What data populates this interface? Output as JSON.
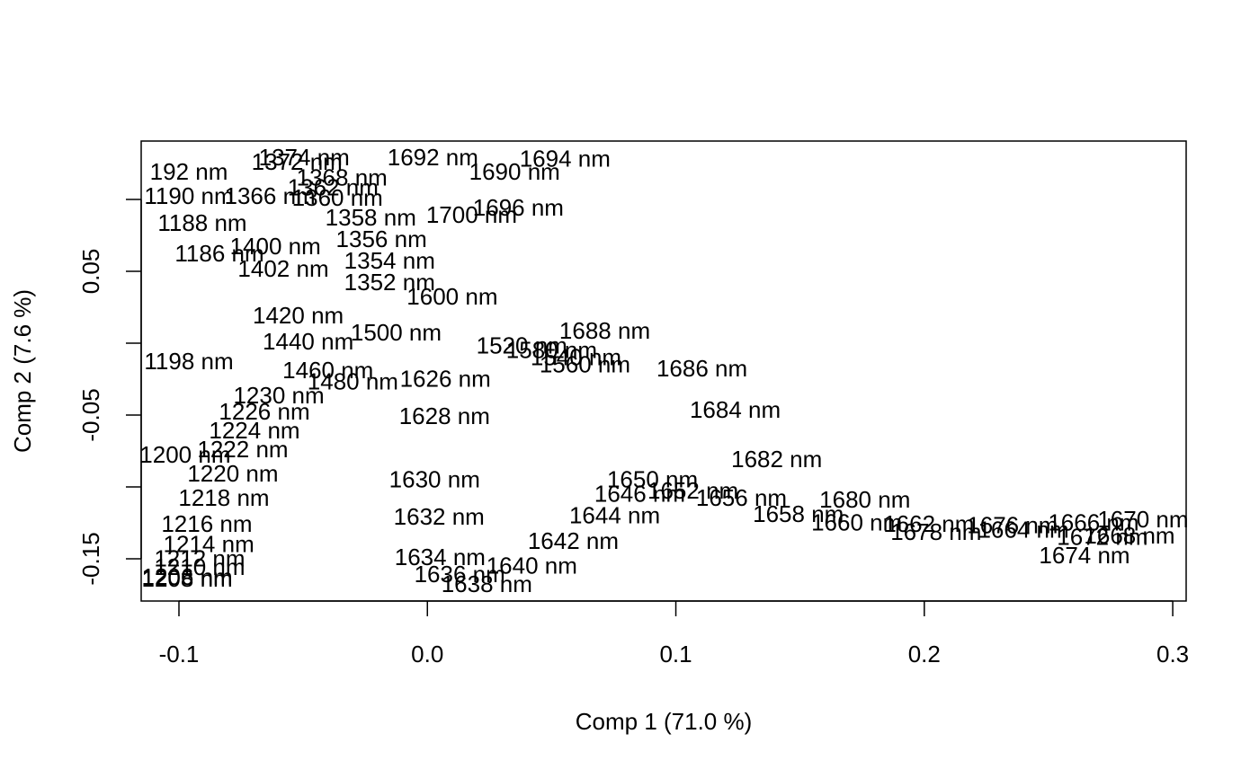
{
  "chart_data": {
    "type": "text-scatter",
    "xlabel": "Comp 1 (71.0 %)",
    "ylabel": "Comp 2 (7.6 %)",
    "xlim": [
      -0.1152,
      0.3054
    ],
    "ylim": [
      -0.1794,
      0.1406
    ],
    "xticks": [
      -0.1,
      {
        "value": 0,
        "label": "0.0"
      },
      0.1,
      0.2,
      0.3
    ],
    "yticks": [
      -0.15,
      {
        "value": -0.1,
        "label": null
      },
      -0.05,
      {
        "value": 0,
        "label": null
      },
      0.05,
      {
        "value": 0.1,
        "label": null
      }
    ],
    "color": "#000000",
    "labels": [
      "1692 nm",
      "1694 nm",
      "1690 nm",
      "1696 nm",
      "1700 nm",
      "1358 nm",
      "1356 nm",
      "1354 nm",
      "1352 nm",
      "1400 nm",
      "1374 nm",
      "1372 nm",
      "1368 nm",
      "1366 nm",
      "1362 nm",
      "1360 nm",
      "192 nm",
      "1190 nm",
      "1188 nm",
      "1186 nm",
      "1402 nm",
      "1198 nm",
      "1688 nm",
      "1686 nm",
      "1626 nm",
      "1628 nm",
      "1684 nm",
      "1682 nm",
      "1230 nm",
      "1226 nm",
      "1224 nm",
      "1222 nm",
      "1200 nm",
      "1220 nm",
      "1218 nm",
      "1216 nm",
      "1214 nm",
      "1212 nm",
      "1210 nm",
      "1208 nm",
      "1206 nm",
      "1630 nm",
      "1632 nm",
      "1634 nm",
      "1636 nm",
      "1638 nm",
      "1640 nm",
      "1642 nm",
      "1644 nm",
      "1646 nm",
      "1650 nm",
      "1652 nm",
      "1656 nm",
      "1658 nm",
      "1680 nm",
      "1660 nm",
      "1662 nm",
      "1678 nm",
      "1676 nm",
      "1664 nm",
      "1666 nm",
      "1670 nm",
      "1668 nm",
      "1672 nm",
      "1674 nm",
      "1600 nm",
      "1500 nm",
      "1520 nm",
      "1540 nm",
      "1560 nm",
      "1580 nm",
      "1420 nm",
      "1440 nm",
      "1460 nm",
      "1480 nm"
    ],
    "x": [
      0.0022,
      0.0554,
      0.0351,
      0.0366,
      0.0178,
      -0.0228,
      -0.0185,
      -0.0152,
      -0.0152,
      -0.0612,
      -0.0496,
      -0.0525,
      -0.0344,
      -0.0634,
      -0.038,
      -0.0362,
      -0.096,
      -0.096,
      -0.0906,
      -0.0837,
      -0.058,
      -0.096,
      0.0714,
      0.1105,
      0.0072,
      0.0069,
      0.1239,
      0.1406,
      -0.0598,
      -0.0656,
      -0.0696,
      -0.0743,
      -0.0975,
      -0.0783,
      -0.0819,
      -0.0888,
      -0.088,
      -0.0917,
      -0.0917,
      -0.0967,
      -0.0967,
      0.0029,
      0.0047,
      0.0051,
      0.013,
      0.0239,
      0.042,
      0.0587,
      0.0754,
      0.0855,
      0.0906,
      0.1069,
      0.1264,
      0.1493,
      0.1761,
      0.1728,
      0.2018,
      0.2047,
      0.2355,
      0.2399,
      0.2681,
      0.288,
      0.2826,
      0.2717,
      0.2645,
      0.01,
      -0.0126,
      0.038,
      0.0598,
      0.0634,
      0.05,
      -0.052,
      -0.048,
      -0.04,
      -0.03
    ],
    "values": [
      0.128,
      0.127,
      0.118,
      0.093,
      0.088,
      0.086,
      0.071,
      0.056,
      0.041,
      0.066,
      0.128,
      0.125,
      0.114,
      0.101,
      0.107,
      0.1,
      0.118,
      0.101,
      0.0825,
      0.061,
      0.0506,
      -0.014,
      0.0075,
      -0.019,
      -0.026,
      -0.052,
      -0.0475,
      -0.082,
      -0.0375,
      -0.049,
      -0.062,
      -0.075,
      -0.079,
      -0.092,
      -0.109,
      -0.127,
      -0.141,
      -0.151,
      -0.157,
      -0.165,
      -0.164,
      -0.096,
      -0.122,
      -0.15,
      -0.162,
      -0.169,
      -0.156,
      -0.139,
      -0.121,
      -0.106,
      -0.096,
      -0.104,
      -0.109,
      -0.12,
      -0.11,
      -0.126,
      -0.127,
      -0.1325,
      -0.128,
      -0.131,
      -0.126,
      -0.124,
      -0.135,
      -0.136,
      -0.149,
      0.031,
      0.006,
      -0.003,
      -0.011,
      -0.016,
      -0.006,
      0.018,
      0.0,
      -0.02,
      -0.028
    ]
  }
}
